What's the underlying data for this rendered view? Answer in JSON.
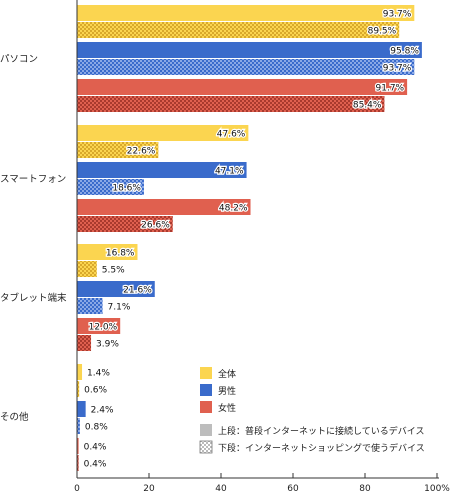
{
  "chart_data": {
    "type": "bar",
    "orientation": "horizontal",
    "categories": [
      "パソコン",
      "スマートフォン",
      "タブレット端末",
      "その他"
    ],
    "xlim": [
      0,
      100
    ],
    "x_ticks": [
      "0",
      "20",
      "40",
      "60",
      "80",
      "100%"
    ],
    "groups": [
      "全体",
      "男性",
      "女性"
    ],
    "rows": [
      "上段：普段インターネットに接続しているデバイス",
      "下段：インターネットショッピングで使うデバイス"
    ],
    "series": [
      {
        "group": "全体",
        "row": "上段",
        "values": [
          93.7,
          47.6,
          16.8,
          1.4
        ],
        "labels": [
          "93.7%",
          "47.6%",
          "16.8%",
          "1.4%"
        ]
      },
      {
        "group": "全体",
        "row": "下段",
        "values": [
          89.5,
          22.6,
          5.5,
          0.6
        ],
        "labels": [
          "89.5%",
          "22.6%",
          "5.5%",
          "0.6%"
        ]
      },
      {
        "group": "男性",
        "row": "上段",
        "values": [
          95.8,
          47.1,
          21.6,
          2.4
        ],
        "labels": [
          "95.8%",
          "47.1%",
          "21.6%",
          "2.4%"
        ]
      },
      {
        "group": "男性",
        "row": "下段",
        "values": [
          93.7,
          18.6,
          7.1,
          0.8
        ],
        "labels": [
          "93.7%",
          "18.6%",
          "7.1%",
          "0.8%"
        ]
      },
      {
        "group": "女性",
        "row": "上段",
        "values": [
          91.7,
          48.2,
          12.0,
          0.4
        ],
        "labels": [
          "91.7%",
          "48.2%",
          "12.0%",
          "0.4%"
        ]
      },
      {
        "group": "女性",
        "row": "下段",
        "values": [
          85.4,
          26.6,
          3.9,
          0.4
        ],
        "labels": [
          "85.4%",
          "26.6%",
          "3.9%",
          "0.4%"
        ]
      }
    ],
    "legend": {
      "placement": "bottom-right",
      "colors": [
        {
          "label": "全体",
          "color": "#FBD550"
        },
        {
          "label": "男性",
          "color": "#3A6BCB"
        },
        {
          "label": "女性",
          "color": "#E0604F"
        }
      ],
      "patterns": [
        {
          "label": "上段：普段インターネットに接続しているデバイス",
          "style": "solid"
        },
        {
          "label": "下段：インターネットショッピングで使うデバイス",
          "style": "checkered"
        }
      ]
    },
    "grid": false
  }
}
